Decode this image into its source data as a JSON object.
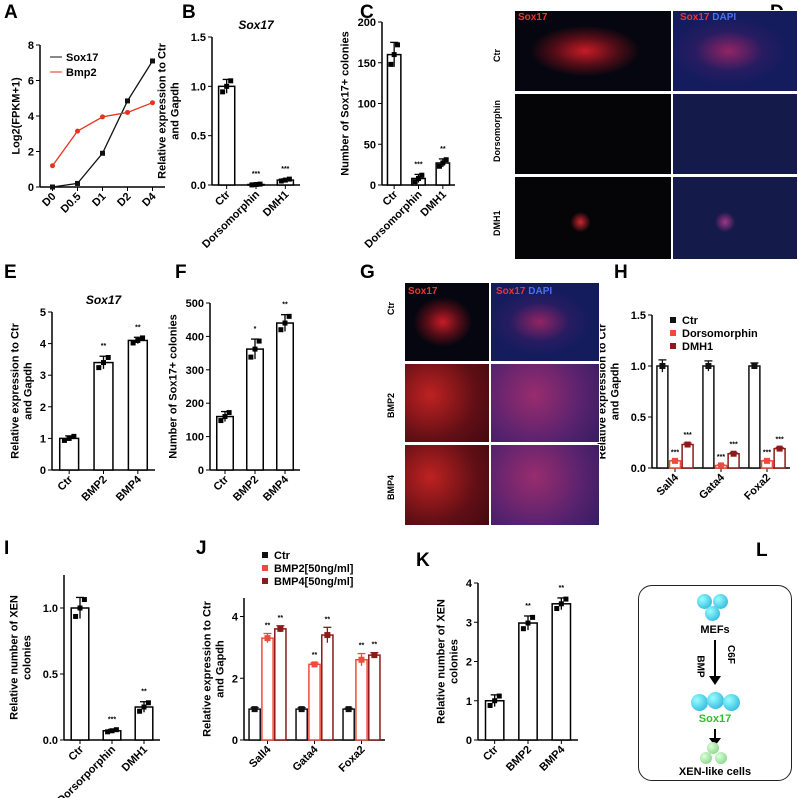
{
  "panels": {
    "A": "A",
    "B": "B",
    "C": "C",
    "D": "D",
    "E": "E",
    "F": "F",
    "G": "G",
    "H": "H",
    "I": "I",
    "J": "J",
    "K": "K",
    "L": "L"
  },
  "colors": {
    "black": "#111111",
    "red": "#e8321e",
    "lightred": "#f04a3a",
    "darkred": "#8b1a1a"
  },
  "panel_D": {
    "col1": "Sox17",
    "col2_a": "Sox17",
    "col2_b": "DAPI",
    "rows": [
      "Ctr",
      "Dorsomorphin",
      "DMH1"
    ]
  },
  "panel_G": {
    "col1": "Sox17",
    "col2_a": "Sox17",
    "col2_b": "DAPI",
    "rows": [
      "Ctr",
      "BMP2",
      "BMP4"
    ]
  },
  "panel_L": {
    "top": "MEFs",
    "arrow1_left": "BMP",
    "arrow1_right": "C6F",
    "middle": "Sox17",
    "bottom": "XEN-like cells"
  },
  "chart_data": [
    {
      "id": "A",
      "type": "line",
      "ylabel": "Log2(FPKM+1)",
      "categories": [
        "D0",
        "D0.5",
        "D1",
        "D2",
        "D4"
      ],
      "ylim": [
        0,
        8
      ],
      "yticks": [
        0,
        2,
        4,
        6,
        8
      ],
      "legend": "top-left",
      "series": [
        {
          "name": "Sox17",
          "color": "#111111",
          "values": [
            0,
            0.2,
            1.9,
            4.85,
            7.1
          ]
        },
        {
          "name": "Bmp2",
          "color": "#e8321e",
          "values": [
            1.2,
            3.15,
            3.95,
            4.2,
            4.75
          ]
        }
      ]
    },
    {
      "id": "B",
      "type": "bar",
      "title": "Sox17",
      "ylabel": "Relative expression to Ctr and Gapdh",
      "categories": [
        "Ctr",
        "Dorsomorphin",
        "DMH1"
      ],
      "values": [
        1.0,
        0.005,
        0.05
      ],
      "errors": [
        0.07,
        0.005,
        0.012
      ],
      "significance": [
        "",
        "***",
        "***"
      ],
      "ylim": [
        0,
        1.5
      ],
      "yticks": [
        "0.0",
        "0.5",
        "1.0",
        "1.5"
      ]
    },
    {
      "id": "C",
      "type": "bar",
      "ylabel": "Number of Sox17+ colonies",
      "categories": [
        "Ctr",
        "Dorsomorphin",
        "DMH1"
      ],
      "values": [
        160,
        8,
        27
      ],
      "errors": [
        15,
        5,
        5
      ],
      "significance": [
        "",
        "***",
        "**"
      ],
      "ylim": [
        0,
        200
      ],
      "yticks": [
        "0",
        "50",
        "100",
        "150",
        "200"
      ]
    },
    {
      "id": "E",
      "type": "bar",
      "title": "Sox17",
      "ylabel": "Relative expression to Ctr and Gapdh",
      "categories": [
        "Ctr",
        "BMP2",
        "BMP4"
      ],
      "values": [
        1.0,
        3.4,
        4.1
      ],
      "errors": [
        0.08,
        0.2,
        0.1
      ],
      "significance": [
        "",
        "**",
        "**"
      ],
      "ylim": [
        0,
        5
      ],
      "yticks": [
        "0",
        "1",
        "2",
        "3",
        "4",
        "5"
      ]
    },
    {
      "id": "F",
      "type": "bar",
      "ylabel": "Number of Sox17+ colonies",
      "categories": [
        "Ctr",
        "BMP2",
        "BMP4"
      ],
      "values": [
        160,
        362,
        440
      ],
      "errors": [
        15,
        30,
        25
      ],
      "significance": [
        "",
        "*",
        "**"
      ],
      "ylim": [
        0,
        500
      ],
      "yticks": [
        "0",
        "100",
        "200",
        "300",
        "400",
        "500"
      ]
    },
    {
      "id": "H",
      "type": "grouped-bar",
      "ylabel": "Relative expression to Ctr and Gapdh",
      "categories": [
        "Sall4",
        "Gata4",
        "Foxa2"
      ],
      "ylim": [
        0,
        1.5
      ],
      "yticks": [
        "0.0",
        "0.5",
        "1.0",
        "1.5"
      ],
      "legend": "top",
      "series": [
        {
          "name": "Ctr",
          "color": "#111111",
          "values": [
            1.0,
            1.0,
            1.0
          ],
          "errors": [
            0.06,
            0.05,
            0.03
          ],
          "significance": [
            "",
            "",
            ""
          ]
        },
        {
          "name": "Dorsomorphin",
          "color": "#f04a3a",
          "values": [
            0.07,
            0.025,
            0.07
          ],
          "errors": [
            0.005,
            0.005,
            0.005
          ],
          "significance": [
            "***",
            "***",
            "***"
          ]
        },
        {
          "name": "DMH1",
          "color": "#8b1a1a",
          "values": [
            0.23,
            0.14,
            0.19
          ],
          "errors": [
            0.015,
            0.01,
            0.01
          ],
          "significance": [
            "***",
            "***",
            "***"
          ]
        }
      ]
    },
    {
      "id": "I",
      "type": "bar",
      "ylabel": "Relative number of XEN colonies",
      "categories": [
        "Ctr",
        "Dorsorporphin",
        "DMH1"
      ],
      "values": [
        1.0,
        0.07,
        0.25
      ],
      "errors": [
        0.08,
        0.01,
        0.04
      ],
      "significance": [
        "",
        "***",
        "**"
      ],
      "ylim": [
        0,
        1.25
      ],
      "yticks": [
        "0.0",
        "0.5",
        "1.0"
      ]
    },
    {
      "id": "J",
      "type": "grouped-bar",
      "ylabel": "Relative expression to Ctr and Gapdh",
      "categories": [
        "Sall4",
        "Gata4",
        "Foxa2"
      ],
      "ylim": [
        0,
        4.6
      ],
      "yticks": [
        "0",
        "2",
        "4"
      ],
      "legend": "top",
      "series": [
        {
          "name": "Ctr",
          "color": "#111111",
          "values": [
            1.0,
            1.0,
            1.0
          ],
          "errors": [
            0.05,
            0.05,
            0.03
          ],
          "significance": [
            "",
            "",
            ""
          ]
        },
        {
          "name": "BMP2[50ng/ml]",
          "color": "#f04a3a",
          "values": [
            3.3,
            2.45,
            2.6
          ],
          "errors": [
            0.15,
            0.05,
            0.2
          ],
          "significance": [
            "**",
            "**",
            "**"
          ]
        },
        {
          "name": "BMP4[50ng/ml]",
          "color": "#8b1a1a",
          "values": [
            3.6,
            3.4,
            2.75
          ],
          "errors": [
            0.1,
            0.25,
            0.08
          ],
          "significance": [
            "**",
            "**",
            "**"
          ]
        }
      ]
    },
    {
      "id": "K",
      "type": "bar",
      "ylabel": "Relative number of XEN colonies",
      "categories": [
        "Ctr",
        "BMP2",
        "BMP4"
      ],
      "values": [
        1.0,
        2.98,
        3.47
      ],
      "errors": [
        0.15,
        0.18,
        0.15
      ],
      "significance": [
        "",
        "**",
        "**"
      ],
      "ylim": [
        0,
        4
      ],
      "yticks": [
        "0",
        "1",
        "2",
        "3",
        "4"
      ]
    }
  ]
}
